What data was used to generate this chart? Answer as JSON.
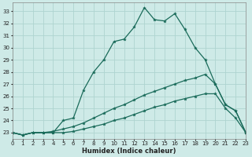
{
  "xlabel": "Humidex (Indice chaleur)",
  "bg_color": "#ceeae7",
  "grid_color": "#aed4d0",
  "line_color": "#1a6b5a",
  "series": [
    {
      "x": [
        0,
        1,
        2,
        3,
        4,
        5,
        6,
        7,
        8,
        9,
        10,
        11,
        12,
        13,
        14,
        15,
        16,
        17,
        18,
        19,
        20,
        21,
        22,
        23
      ],
      "y": [
        23,
        22.8,
        23,
        23,
        23,
        24.0,
        24.2,
        26.5,
        28.0,
        29.0,
        30.5,
        30.7,
        31.7,
        33.3,
        32.3,
        32.2,
        32.8,
        31.5,
        30.0,
        29.0,
        27.0,
        25.3,
        24.8,
        23.0
      ]
    },
    {
      "x": [
        0,
        1,
        2,
        3,
        4,
        5,
        6,
        7,
        8,
        9,
        10,
        11,
        12,
        13,
        14,
        15,
        16,
        17,
        18,
        19,
        20,
        21,
        22,
        23
      ],
      "y": [
        23,
        22.8,
        23,
        23,
        23.1,
        23.3,
        23.5,
        23.8,
        24.2,
        24.6,
        25.0,
        25.3,
        25.7,
        26.1,
        26.4,
        26.7,
        27.0,
        27.3,
        27.5,
        27.8,
        27.0,
        25.3,
        24.8,
        23.0
      ]
    },
    {
      "x": [
        0,
        1,
        2,
        3,
        4,
        5,
        6,
        7,
        8,
        9,
        10,
        11,
        12,
        13,
        14,
        15,
        16,
        17,
        18,
        19,
        20,
        21,
        22,
        23
      ],
      "y": [
        23,
        22.8,
        23,
        23,
        23,
        23.0,
        23.1,
        23.3,
        23.5,
        23.7,
        24.0,
        24.2,
        24.5,
        24.8,
        25.1,
        25.3,
        25.6,
        25.8,
        26.0,
        26.2,
        26.2,
        25.0,
        24.2,
        23.0
      ]
    }
  ],
  "xlim": [
    0,
    23
  ],
  "ylim": [
    22.5,
    33.7
  ],
  "yticks": [
    23,
    24,
    25,
    26,
    27,
    28,
    29,
    30,
    31,
    32,
    33
  ],
  "xticks": [
    0,
    1,
    2,
    3,
    4,
    5,
    6,
    7,
    8,
    9,
    10,
    11,
    12,
    13,
    14,
    15,
    16,
    17,
    18,
    19,
    20,
    21,
    22,
    23
  ]
}
